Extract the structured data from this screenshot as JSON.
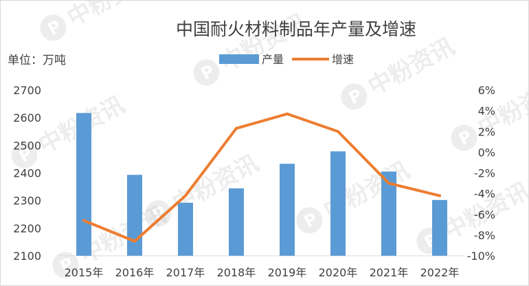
{
  "chart_data": {
    "type": "bar",
    "title": "中国耐火材料制品年产量及增速",
    "unit_label": "单位：万吨",
    "categories": [
      "2015年",
      "2016年",
      "2017年",
      "2018年",
      "2019年",
      "2020年",
      "2021年",
      "2022年"
    ],
    "series": [
      {
        "name": "产量",
        "type": "bar",
        "axis": "left",
        "color": "#5b9bd5",
        "values": [
          2617,
          2393,
          2292,
          2344,
          2433,
          2478,
          2405,
          2302
        ]
      },
      {
        "name": "增速",
        "type": "line",
        "axis": "right",
        "color": "#ed7d31",
        "values": [
          -6.6,
          -8.6,
          -4.2,
          2.3,
          3.7,
          2.0,
          -3.0,
          -4.2
        ]
      }
    ],
    "ylim_left": [
      2100,
      2700
    ],
    "yticks_left": [
      "2100",
      "2200",
      "2300",
      "2400",
      "2500",
      "2600",
      "2700"
    ],
    "ylim_right": [
      -10,
      6
    ],
    "yticks_right": [
      "-10%",
      "-8%",
      "-6%",
      "-4%",
      "-2%",
      "0%",
      "2%",
      "4%",
      "6%"
    ],
    "grid": false,
    "legend_position": "top-center"
  },
  "watermark": {
    "text": "中粉资讯",
    "icon": "p-logo-icon"
  }
}
